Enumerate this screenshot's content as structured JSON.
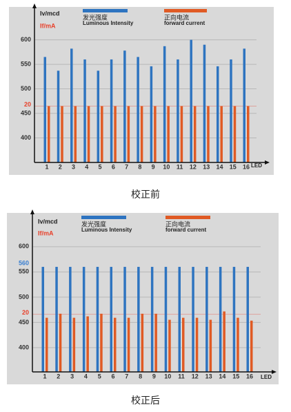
{
  "chart_data": [
    {
      "type": "bar",
      "title": "校正前",
      "ylabel": "Iv/mcd",
      "y2label": "If/mA",
      "xlabel": "LED",
      "categories": [
        "1",
        "2",
        "3",
        "4",
        "5",
        "6",
        "7",
        "8",
        "9",
        "10",
        "11",
        "12",
        "13",
        "14",
        "15",
        "16"
      ],
      "series": [
        {
          "name": "发光强度",
          "subname": "Luminous Intensity",
          "color": "#2e74c0",
          "values": [
            565,
            537,
            582,
            560,
            537,
            560,
            578,
            565,
            546,
            587,
            560,
            600,
            590,
            546,
            560,
            582
          ]
        },
        {
          "name": "正向电流",
          "subname": "forward current",
          "color": "#e05a24",
          "axis": "y2",
          "values": [
            20,
            20,
            20,
            20,
            20,
            20,
            20,
            20,
            20,
            20,
            20,
            20,
            20,
            20,
            20,
            20
          ]
        }
      ],
      "ylim": [
        350,
        660
      ],
      "yticks": [
        400,
        450,
        500,
        550,
        600
      ],
      "y2lim": [
        0,
        54
      ],
      "y2ticks": [
        20
      ],
      "y2color": "#e8402a",
      "grid": true
    },
    {
      "type": "bar",
      "title": "校正后",
      "ylabel": "Iv/mcd",
      "y2label": "If/mA",
      "xlabel": "LED",
      "categories": [
        "1",
        "2",
        "3",
        "4",
        "5",
        "6",
        "7",
        "8",
        "9",
        "10",
        "11",
        "12",
        "13",
        "14",
        "15",
        "16"
      ],
      "series": [
        {
          "name": "发光强度",
          "subname": "Luminous Intensity",
          "color": "#2e74c0",
          "values": [
            560,
            560,
            560,
            560,
            560,
            560,
            560,
            560,
            560,
            560,
            560,
            560,
            560,
            560,
            560,
            560
          ]
        },
        {
          "name": "正向电流",
          "subname": "forward current",
          "color": "#e05a24",
          "axis": "y2",
          "values": [
            18.8,
            20.2,
            18.8,
            19.3,
            20.2,
            18.8,
            18.8,
            20.2,
            20.2,
            18.1,
            18.8,
            18.8,
            18.1,
            21,
            18.8,
            17.8
          ]
        }
      ],
      "ylim": [
        352,
        660
      ],
      "yticks": [
        400,
        450,
        500,
        550,
        600
      ],
      "y_marker": {
        "value": 560,
        "color": "#3a7fd0"
      },
      "y2lim": [
        0,
        54
      ],
      "y2ticks": [
        20
      ],
      "y2color": "#e8402a",
      "grid": true
    }
  ]
}
